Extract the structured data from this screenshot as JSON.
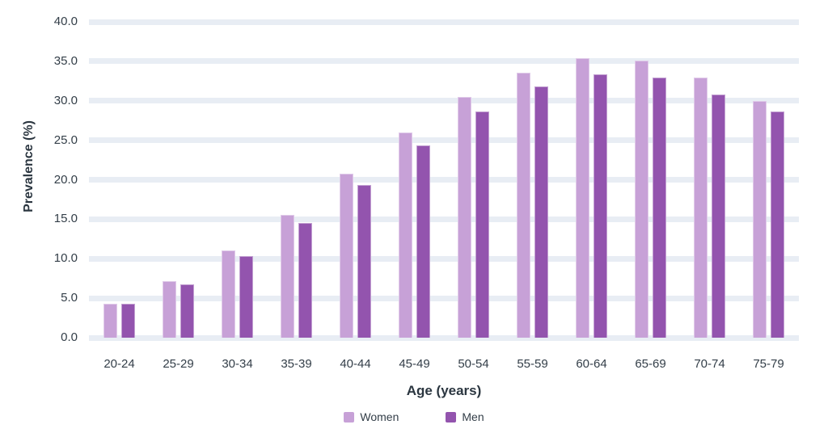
{
  "chart_data": {
    "type": "bar",
    "title": "",
    "xlabel": "Age (years)",
    "ylabel": "Prevalence (%)",
    "categories": [
      "20-24",
      "25-29",
      "30-34",
      "35-39",
      "40-44",
      "45-49",
      "50-54",
      "55-59",
      "60-64",
      "65-69",
      "70-74",
      "75-79"
    ],
    "series": [
      {
        "name": "Women",
        "color": "#C7A1D7",
        "values": [
          4.3,
          7.2,
          11.0,
          15.6,
          20.8,
          26.0,
          30.5,
          33.6,
          35.4,
          35.1,
          32.9,
          30.0
        ]
      },
      {
        "name": "Men",
        "color": "#9354AE",
        "values": [
          4.3,
          6.8,
          10.3,
          14.5,
          19.3,
          24.4,
          28.6,
          31.8,
          33.4,
          32.9,
          30.8,
          28.6
        ]
      }
    ],
    "ylim": [
      0,
      40
    ],
    "ytick_step": 5,
    "ytick_decimals": 1,
    "grid": "horizontal",
    "gridline_color": "#E8EDF4",
    "legend_position": "bottom-center",
    "text_color": "#333E48"
  }
}
